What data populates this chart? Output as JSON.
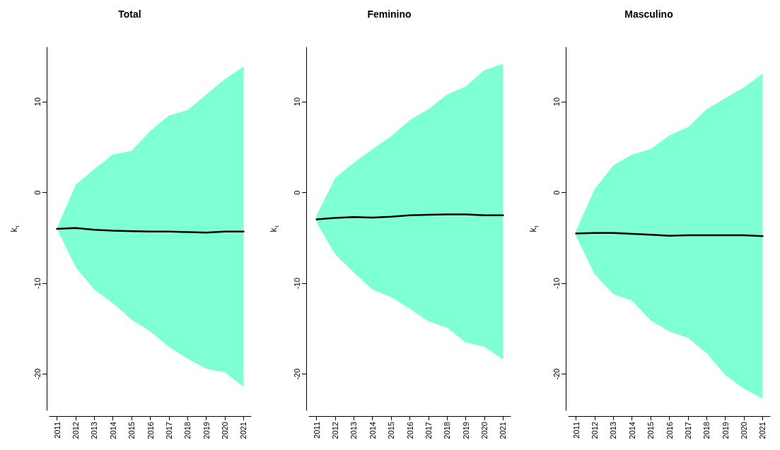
{
  "chart_data": [
    {
      "type": "line",
      "title": "Total",
      "ylabel": "k$_{t}$",
      "x": [
        2011,
        2012,
        2013,
        2014,
        2015,
        2016,
        2017,
        2018,
        2019,
        2020,
        2021
      ],
      "xlim": [
        2010.6,
        2021.4
      ],
      "xticks": [
        2011,
        2012,
        2013,
        2014,
        2015,
        2016,
        2017,
        2018,
        2019,
        2020,
        2021
      ],
      "ylim": [
        -24,
        16
      ],
      "yticks": [
        -20,
        -10,
        0,
        10
      ],
      "grid": false,
      "marker": "none",
      "line_style": "solid",
      "series": [
        {
          "color": "#000000",
          "values": [
            -4.0,
            -3.9,
            -4.1,
            -4.2,
            -4.25,
            -4.3,
            -4.3,
            -4.35,
            -4.4,
            -4.3,
            -4.3
          ],
          "lower": [
            -4.0,
            -8.2,
            -10.7,
            -12.2,
            -14.0,
            -15.3,
            -17.0,
            -18.3,
            -19.4,
            -19.8,
            -21.4
          ],
          "upper": [
            -3.9,
            0.85,
            2.6,
            4.2,
            4.6,
            6.8,
            8.5,
            9.1,
            10.8,
            12.5,
            13.9
          ]
        }
      ]
    },
    {
      "type": "line",
      "title": "Feminino",
      "ylabel": "k$_{t}$",
      "x": [
        2011,
        2012,
        2013,
        2014,
        2015,
        2016,
        2017,
        2018,
        2019,
        2020,
        2021
      ],
      "xlim": [
        2010.6,
        2021.4
      ],
      "xticks": [
        2011,
        2012,
        2013,
        2014,
        2015,
        2016,
        2017,
        2018,
        2019,
        2020,
        2021
      ],
      "ylim": [
        -24,
        16
      ],
      "yticks": [
        -20,
        -10,
        0,
        10
      ],
      "grid": false,
      "marker": "none",
      "line_style": "solid",
      "series": [
        {
          "color": "#000000",
          "values": [
            -2.95,
            -2.8,
            -2.7,
            -2.75,
            -2.65,
            -2.5,
            -2.45,
            -2.4,
            -2.4,
            -2.5,
            -2.5
          ],
          "lower": [
            -3.3,
            -6.8,
            -8.8,
            -10.7,
            -11.5,
            -12.8,
            -14.2,
            -14.9,
            -16.5,
            -17.0,
            -18.4
          ],
          "upper": [
            -2.5,
            1.6,
            3.3,
            4.8,
            6.2,
            8.0,
            9.2,
            10.8,
            11.7,
            13.5,
            14.2
          ]
        }
      ]
    },
    {
      "type": "line",
      "title": "Masculino",
      "ylabel": "k$_{t}$",
      "x": [
        2011,
        2012,
        2013,
        2014,
        2015,
        2016,
        2017,
        2018,
        2019,
        2020,
        2021
      ],
      "xlim": [
        2010.6,
        2021.4
      ],
      "xticks": [
        2011,
        2012,
        2013,
        2014,
        2015,
        2016,
        2017,
        2018,
        2019,
        2020,
        2021
      ],
      "ylim": [
        -24,
        16
      ],
      "yticks": [
        -20,
        -10,
        0,
        10
      ],
      "grid": false,
      "marker": "none",
      "line_style": "solid",
      "series": [
        {
          "color": "#000000",
          "values": [
            -4.5,
            -4.45,
            -4.45,
            -4.55,
            -4.65,
            -4.75,
            -4.7,
            -4.7,
            -4.7,
            -4.7,
            -4.8
          ],
          "lower": [
            -4.8,
            -9.0,
            -11.2,
            -11.9,
            -14.1,
            -15.3,
            -16.0,
            -17.7,
            -20.1,
            -21.6,
            -22.7
          ],
          "upper": [
            -4.2,
            0.4,
            3.0,
            4.2,
            4.8,
            6.3,
            7.2,
            9.2,
            10.4,
            11.6,
            13.1
          ]
        }
      ]
    }
  ]
}
